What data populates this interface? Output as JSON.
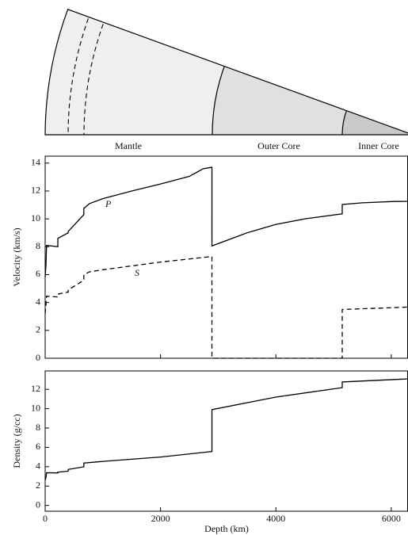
{
  "diagram": {
    "labels": [
      "Mantle",
      "Outer Core",
      "Inner Core"
    ]
  },
  "chart_data": [
    {
      "type": "line",
      "ylabel": "Velocity (km/s)",
      "xlim": [
        0,
        6290
      ],
      "ylim": [
        0,
        14.5
      ],
      "xticks": [
        0,
        2000,
        4000,
        6000
      ],
      "yticks": [
        0,
        2,
        4,
        6,
        8,
        10,
        12,
        14
      ],
      "show_xtick_labels": false,
      "series": [
        {
          "name": "P",
          "color": "#000000",
          "dash": false,
          "x": [
            0,
            15,
            24,
            220,
            220,
            400,
            400,
            670,
            670,
            771,
            1000,
            1500,
            2000,
            2500,
            2741,
            2891,
            2891,
            3500,
            4000,
            4500,
            5150,
            5150,
            5500,
            6000,
            6290
          ],
          "values": [
            5.8,
            6.8,
            8.1,
            8.0,
            8.6,
            9.0,
            9.1,
            10.3,
            10.75,
            11.1,
            11.45,
            12.0,
            12.5,
            13.05,
            13.6,
            13.7,
            8.06,
            9.0,
            9.6,
            10.0,
            10.36,
            11.03,
            11.15,
            11.24,
            11.26
          ]
        },
        {
          "name": "S",
          "color": "#000000",
          "dash": true,
          "x": [
            0,
            15,
            24,
            220,
            220,
            400,
            400,
            670,
            670,
            771,
            1000,
            2000,
            2891,
            2891,
            5150,
            5150,
            6290
          ],
          "values": [
            3.2,
            3.9,
            4.45,
            4.4,
            4.6,
            4.75,
            4.9,
            5.6,
            6.0,
            6.2,
            6.35,
            6.9,
            7.3,
            0,
            0,
            3.5,
            3.67
          ]
        }
      ]
    },
    {
      "type": "line",
      "ylabel": "Density (g/cc)",
      "xlabel": "Depth (km)",
      "xlim": [
        0,
        6290
      ],
      "ylim": [
        -0.6,
        13.9
      ],
      "xticks": [
        0,
        2000,
        4000,
        6000
      ],
      "yticks": [
        0,
        2,
        4,
        6,
        8,
        10,
        12
      ],
      "show_xtick_labels": true,
      "series": [
        {
          "color": "#000000",
          "dash": false,
          "x": [
            0,
            15,
            24,
            220,
            220,
            400,
            400,
            670,
            670,
            1000,
            2000,
            2891,
            2891,
            4000,
            5150,
            5150,
            6290
          ],
          "values": [
            2.6,
            2.9,
            3.38,
            3.36,
            3.44,
            3.54,
            3.72,
            3.99,
            4.38,
            4.55,
            5.0,
            5.57,
            9.9,
            11.2,
            12.17,
            12.76,
            13.08
          ]
        }
      ]
    }
  ]
}
